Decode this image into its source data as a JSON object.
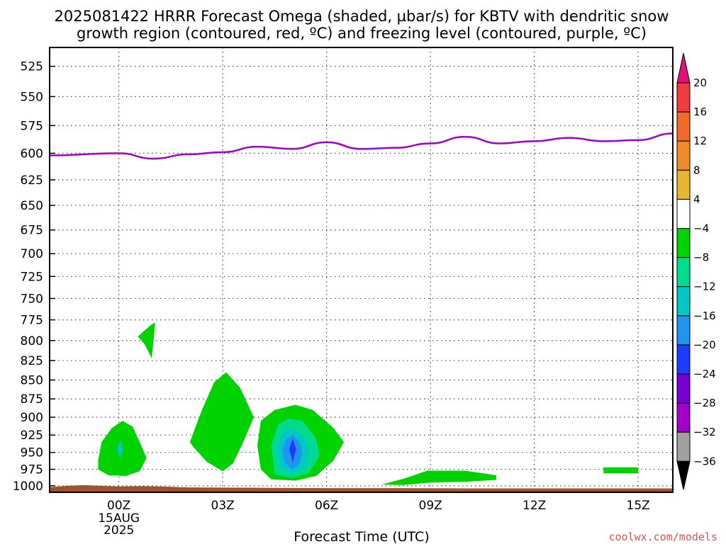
{
  "title": {
    "line1": "2025081422 HRRR Forecast Omega (shaded, µbar/s) for KBTV with dendritic snow",
    "line2": "growth region (contoured, red, ºC) and freezing level (contoured, purple, ºC)"
  },
  "credit": "coolwx.com/models",
  "chart_data": {
    "type": "contour",
    "title": "2025081422 HRRR Forecast Omega (shaded, µbar/s) for KBTV with dendritic snow growth region (contoured, red, ºC) and freezing level (contoured, purple, ºC)",
    "xlabel": "Forecast Time (UTC)",
    "ylabel": "",
    "x_range_hours": [
      -2,
      16
    ],
    "x_ticks": [
      {
        "hour": 0,
        "label": "00Z",
        "sublabel": [
          "15AUG",
          "2025"
        ]
      },
      {
        "hour": 3,
        "label": "03Z"
      },
      {
        "hour": 6,
        "label": "06Z"
      },
      {
        "hour": 9,
        "label": "09Z"
      },
      {
        "hour": 12,
        "label": "12Z"
      },
      {
        "hour": 15,
        "label": "15Z"
      }
    ],
    "y_axis_pressure_hpa": [
      525,
      550,
      575,
      600,
      625,
      650,
      675,
      700,
      725,
      750,
      775,
      800,
      825,
      850,
      875,
      900,
      925,
      950,
      975,
      1000
    ],
    "y_range_hpa": [
      510,
      1010
    ],
    "grid": true,
    "freezing_level": {
      "color": "#a000c8",
      "hours": [
        -2,
        0,
        1,
        2,
        3,
        4,
        5,
        6,
        7,
        8,
        9,
        10,
        11,
        12,
        13,
        14,
        15,
        16
      ],
      "pressure_hpa": [
        602,
        600,
        605,
        601,
        599,
        594,
        596,
        590,
        596,
        595,
        591,
        585,
        591,
        589,
        586,
        589,
        588,
        582
      ]
    },
    "colorbar": {
      "levels": [
        20,
        16,
        12,
        8,
        4,
        -4,
        -8,
        -12,
        -16,
        -20,
        -24,
        -28,
        -32,
        -36
      ],
      "colors": [
        {
          "range": ">20",
          "color": "#e0107f"
        },
        {
          "range": "16 to 20",
          "color": "#f03c3c"
        },
        {
          "range": "12 to 16",
          "color": "#f06a28"
        },
        {
          "range": "8 to 12",
          "color": "#f08c28"
        },
        {
          "range": "4 to 8",
          "color": "#e8b432"
        },
        {
          "range": "-4 to 4",
          "color": "#ffffff"
        },
        {
          "range": "-8 to -4",
          "color": "#00d200"
        },
        {
          "range": "-12 to -8",
          "color": "#00dc8c"
        },
        {
          "range": "-16 to -12",
          "color": "#00c8c8"
        },
        {
          "range": "-20 to -16",
          "color": "#1e96f0"
        },
        {
          "range": "-24 to -20",
          "color": "#1e3cff"
        },
        {
          "range": "-28 to -24",
          "color": "#7800d2"
        },
        {
          "range": "-32 to -28",
          "color": "#a000c8"
        },
        {
          "range": "-36 to -32",
          "color": "#a0a0a0"
        },
        {
          "range": "<-36",
          "color": "#000000"
        }
      ]
    },
    "omega_features": [
      {
        "desc": "weak ascent near 00Z",
        "hour_center": 0.1,
        "pressure_center_hpa": 945,
        "max_ascent": "-12 to -16"
      },
      {
        "desc": "small patch 00-01Z",
        "hour_center": 0.8,
        "pressure_center_hpa": 795,
        "max_ascent": "-4 to -8"
      },
      {
        "desc": "ascent near 03Z",
        "hour_center": 2.8,
        "pressure_center_hpa": 905,
        "max_ascent": "-4 to -8"
      },
      {
        "desc": "strongest ascent near 05Z",
        "hour_center": 5.0,
        "pressure_center_hpa": 945,
        "max_ascent": "-20 to -24"
      },
      {
        "desc": "shallow ascent 08-11Z",
        "hour_center": 9.5,
        "pressure_center_hpa": 985,
        "max_ascent": "-4 to -8"
      },
      {
        "desc": "small patch near 14Z",
        "hour_center": 14.5,
        "pressure_center_hpa": 975,
        "max_ascent": "-4 to -8"
      }
    ],
    "surface_color": "#a0522d"
  }
}
